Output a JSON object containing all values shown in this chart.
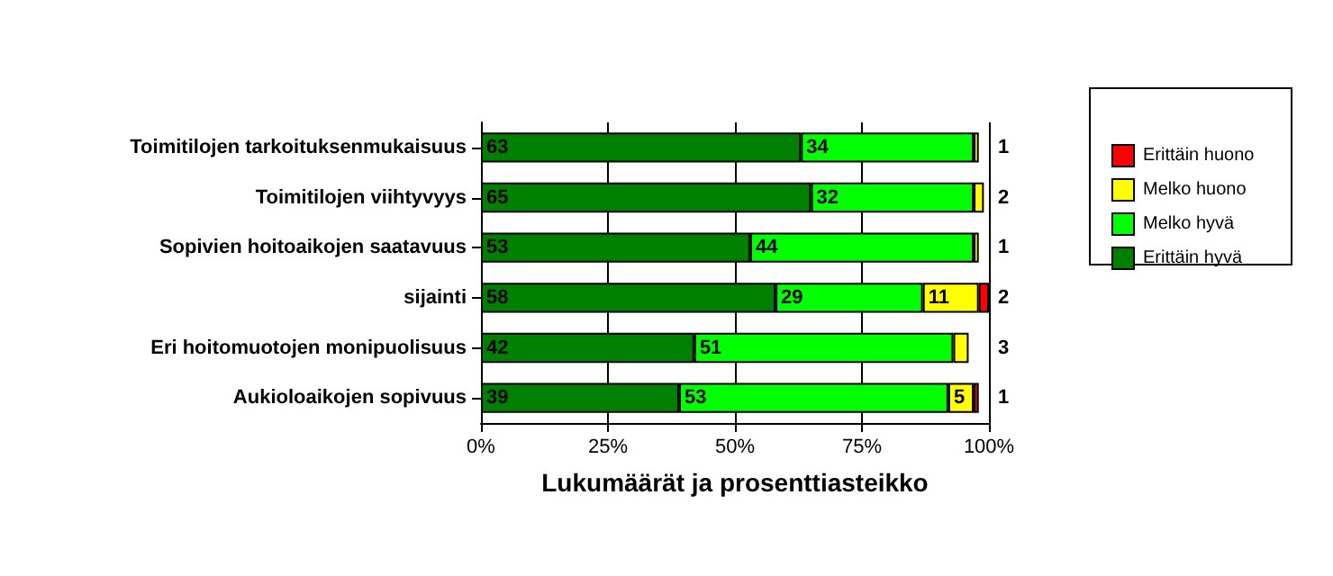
{
  "chart_data": {
    "type": "bar",
    "orientation": "horizontal",
    "stacked": true,
    "xlabel": "Lukumäärät ja prosenttiasteikko",
    "categories": [
      "Toimitilojen tarkoituksenmukaisuus",
      "Toimitilojen viihtyvyys",
      "Sopivien hoitoaikojen saatavuus",
      "sijainti",
      "Eri hoitomuotojen monipuolisuus",
      "Aukioloaikojen sopivuus"
    ],
    "series": [
      {
        "name": "Erittäin hyvä",
        "color": "#008000",
        "values": [
          63,
          65,
          53,
          58,
          42,
          39
        ]
      },
      {
        "name": "Melko hyvä",
        "color": "#00ff00",
        "values": [
          34,
          32,
          44,
          29,
          51,
          53
        ]
      },
      {
        "name": "Melko huono",
        "color": "#ffff00",
        "values": [
          1,
          2,
          1,
          11,
          3,
          5
        ]
      },
      {
        "name": "Erittäin huono",
        "color": "#ff0000",
        "values": [
          null,
          null,
          null,
          2,
          null,
          1
        ]
      }
    ],
    "xlim": [
      0,
      100
    ],
    "xticks": [
      {
        "value": 0,
        "label": "0%"
      },
      {
        "value": 25,
        "label": "25%"
      },
      {
        "value": 50,
        "label": "50%"
      },
      {
        "value": 75,
        "label": "75%"
      },
      {
        "value": 100,
        "label": "100%"
      }
    ],
    "data_labels": true,
    "grid": "x",
    "legend": "right"
  }
}
